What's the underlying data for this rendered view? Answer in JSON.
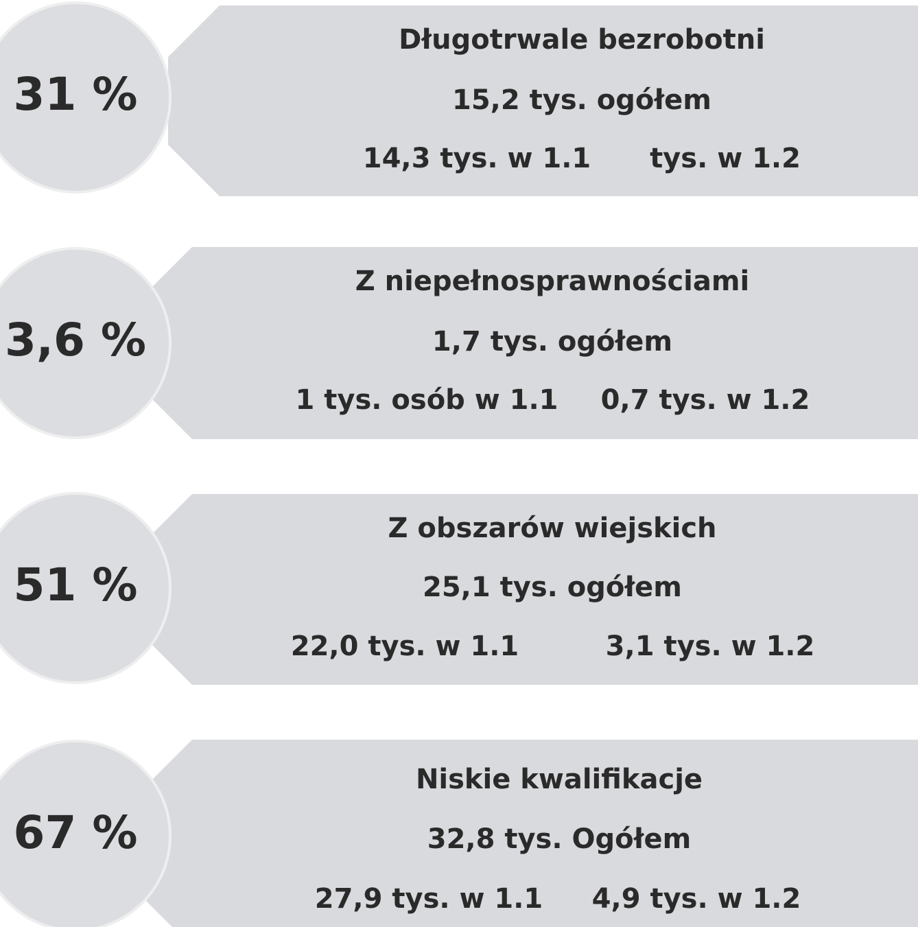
{
  "items": [
    {
      "percent": "31 %",
      "title": "Długotrwale bezrobotni",
      "total": "15,2 tys. ogółem",
      "part1": "14,3 tys. w 1.1",
      "part2": "tys. w 1.2"
    },
    {
      "percent": "3,6 %",
      "title": "Z niepełnosprawnościami",
      "total": "1,7 tys.  ogółem",
      "part1": "1 tys. osób w 1.1",
      "part2": "0,7 tys. w 1.2"
    },
    {
      "percent": "51 %",
      "title": "Z obszarów wiejskich",
      "total": "25,1 tys. ogółem",
      "part1": "22,0 tys. w 1.1",
      "part2": "3,1 tys. w 1.2"
    },
    {
      "percent": "67 %",
      "title": "Niskie kwalifikacje",
      "total": "32,8 tys. Ogółem",
      "part1": "27,9 tys. w 1.1",
      "part2": "4,9 tys. w 1.2"
    }
  ]
}
